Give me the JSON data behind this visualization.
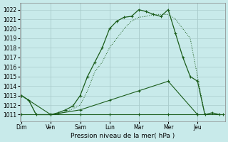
{
  "background_color": "#c8eaea",
  "grid_color": "#aacccc",
  "line_color": "#1a5c1a",
  "xlabel": "Pression niveau de la mer( hPa )",
  "ylim": [
    1010.3,
    1022.7
  ],
  "yticks": [
    1011,
    1012,
    1013,
    1014,
    1015,
    1016,
    1017,
    1018,
    1019,
    1020,
    1021,
    1022
  ],
  "day_labels": [
    "Dim",
    "Ven",
    "Sam",
    "Lun",
    "Mar",
    "Mer",
    "Jeu"
  ],
  "day_positions": [
    0,
    8,
    16,
    24,
    32,
    40,
    48
  ],
  "xlim": [
    -0.5,
    55.5
  ],
  "curve_main": {
    "x": [
      0,
      2,
      4,
      8,
      10,
      12,
      14,
      16,
      18,
      20,
      22,
      24,
      26,
      28,
      30,
      32,
      34,
      36,
      38,
      40,
      42,
      44,
      46,
      48,
      50,
      52,
      54
    ],
    "y": [
      1013,
      1012.5,
      1011,
      1011,
      1011.2,
      1011.5,
      1011.9,
      1013,
      1015,
      1016.5,
      1018,
      1020,
      1020.8,
      1021.2,
      1021.3,
      1022,
      1021.8,
      1021.5,
      1021.3,
      1022,
      1019.5,
      1017,
      1015,
      1014.5,
      1011,
      1011.2,
      1011
    ]
  },
  "curve_dotted": {
    "x": [
      0,
      2,
      4,
      8,
      10,
      12,
      14,
      16,
      18,
      20,
      22,
      24,
      26,
      28,
      30,
      32,
      34,
      36,
      38,
      40,
      42,
      44,
      46,
      48,
      50,
      52,
      54
    ],
    "y": [
      1013,
      1012.5,
      1011,
      1011,
      1011.1,
      1011.3,
      1011.6,
      1012,
      1013.5,
      1015.5,
      1016.5,
      1018,
      1019,
      1020,
      1020.8,
      1021.2,
      1021.3,
      1021.5,
      1021.5,
      1021.5,
      1021,
      1020,
      1019,
      1015,
      1011,
      1011,
      1011
    ]
  },
  "curve_rising": {
    "x": [
      0,
      8,
      16,
      24,
      32,
      40,
      48
    ],
    "y": [
      1013,
      1011,
      1011.5,
      1012.5,
      1013.5,
      1014.5,
      1011
    ]
  },
  "curve_flat": {
    "x": [
      0,
      8,
      16,
      24,
      32,
      40,
      48,
      55
    ],
    "y": [
      1011,
      1011,
      1011,
      1011,
      1011,
      1011,
      1011,
      1011
    ]
  },
  "markers_main": {
    "x": [
      0,
      8,
      16,
      24,
      26,
      30,
      32,
      34,
      36,
      40,
      48
    ],
    "y": [
      1013,
      1011,
      1013,
      1020,
      1020.8,
      1021.3,
      1022,
      1021.8,
      1021.5,
      1022,
      1014.5
    ]
  }
}
